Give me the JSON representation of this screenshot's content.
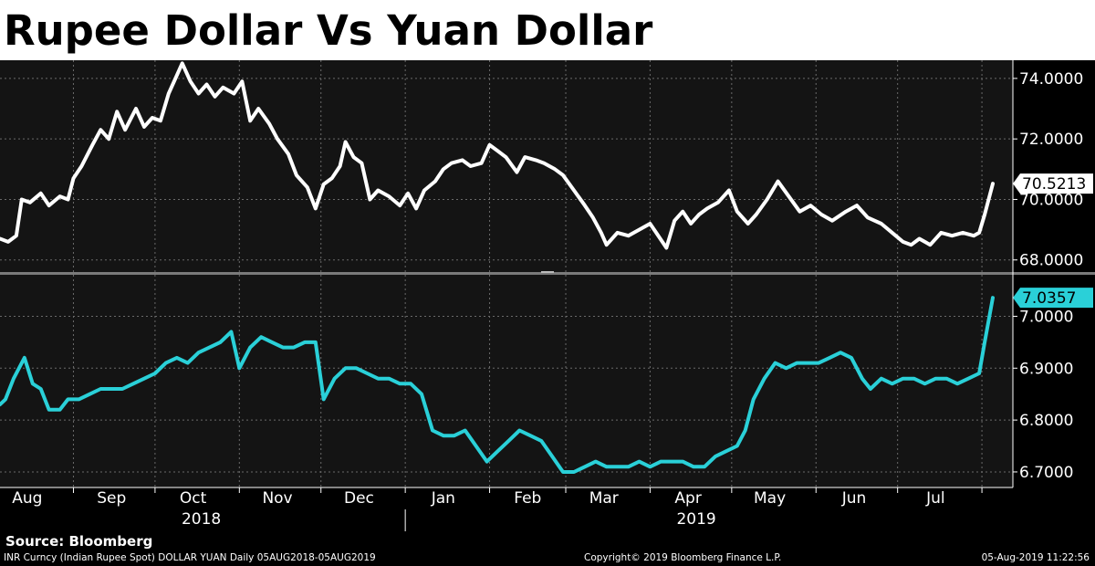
{
  "title": "Rupee Dollar Vs Yuan Dollar",
  "source": "Source: Bloomberg",
  "footer": {
    "left": "INR Curncy (Indian Rupee Spot) DOLLAR YUAN  Daily 05AUG2018-05AUG2019",
    "middle": "Copyright© 2019 Bloomberg Finance L.P.",
    "right": "05-Aug-2019 11:22:56"
  },
  "colors": {
    "background": "#141414",
    "inr_line": "#ffffff",
    "cny_line": "#2ad0d8",
    "grid": "#6a6a6a"
  },
  "chart_data": {
    "type": "line",
    "x_axis": {
      "months": [
        "Aug",
        "Sep",
        "Oct",
        "Nov",
        "Dec",
        "Jan",
        "Feb",
        "Mar",
        "Apr",
        "May",
        "Jun",
        "Jul"
      ],
      "years": [
        "2018",
        "2019"
      ],
      "range": [
        "2018-08-05",
        "2019-08-05"
      ]
    },
    "panels": [
      {
        "series": "INR",
        "color": "#ffffff",
        "ylim": [
          67.6,
          74.6
        ],
        "yticks": [
          "74.0000",
          "72.0000",
          "70.0000",
          "68.0000"
        ],
        "last_value": "70.5213",
        "points": [
          [
            "2018-08-05",
            68.7
          ],
          [
            "2018-08-08",
            68.6
          ],
          [
            "2018-08-11",
            68.8
          ],
          [
            "2018-08-13",
            70.0
          ],
          [
            "2018-08-16",
            69.9
          ],
          [
            "2018-08-20",
            70.2
          ],
          [
            "2018-08-23",
            69.8
          ],
          [
            "2018-08-27",
            70.1
          ],
          [
            "2018-08-30",
            70.0
          ],
          [
            "2018-09-01",
            70.7
          ],
          [
            "2018-09-04",
            71.1
          ],
          [
            "2018-09-08",
            71.8
          ],
          [
            "2018-09-11",
            72.3
          ],
          [
            "2018-09-14",
            72.0
          ],
          [
            "2018-09-17",
            72.9
          ],
          [
            "2018-09-20",
            72.3
          ],
          [
            "2018-09-24",
            73.0
          ],
          [
            "2018-09-27",
            72.4
          ],
          [
            "2018-09-30",
            72.7
          ],
          [
            "2018-10-03",
            72.6
          ],
          [
            "2018-10-06",
            73.5
          ],
          [
            "2018-10-09",
            74.1
          ],
          [
            "2018-10-11",
            74.5
          ],
          [
            "2018-10-14",
            73.9
          ],
          [
            "2018-10-17",
            73.5
          ],
          [
            "2018-10-20",
            73.8
          ],
          [
            "2018-10-23",
            73.4
          ],
          [
            "2018-10-26",
            73.7
          ],
          [
            "2018-10-30",
            73.5
          ],
          [
            "2018-11-02",
            73.9
          ],
          [
            "2018-11-05",
            72.6
          ],
          [
            "2018-11-08",
            73.0
          ],
          [
            "2018-11-12",
            72.5
          ],
          [
            "2018-11-15",
            72.0
          ],
          [
            "2018-11-19",
            71.5
          ],
          [
            "2018-11-22",
            70.8
          ],
          [
            "2018-11-26",
            70.4
          ],
          [
            "2018-11-29",
            69.7
          ],
          [
            "2018-12-02",
            70.5
          ],
          [
            "2018-12-05",
            70.7
          ],
          [
            "2018-12-08",
            71.1
          ],
          [
            "2018-12-10",
            71.9
          ],
          [
            "2018-12-13",
            71.4
          ],
          [
            "2018-12-16",
            71.2
          ],
          [
            "2018-12-19",
            70.0
          ],
          [
            "2018-12-22",
            70.3
          ],
          [
            "2018-12-26",
            70.1
          ],
          [
            "2018-12-30",
            69.8
          ],
          [
            "2019-01-02",
            70.2
          ],
          [
            "2019-01-05",
            69.7
          ],
          [
            "2019-01-08",
            70.3
          ],
          [
            "2019-01-12",
            70.6
          ],
          [
            "2019-01-15",
            71.0
          ],
          [
            "2019-01-18",
            71.2
          ],
          [
            "2019-01-22",
            71.3
          ],
          [
            "2019-01-25",
            71.1
          ],
          [
            "2019-01-29",
            71.2
          ],
          [
            "2019-02-01",
            71.8
          ],
          [
            "2019-02-04",
            71.6
          ],
          [
            "2019-02-07",
            71.4
          ],
          [
            "2019-02-11",
            70.9
          ],
          [
            "2019-02-14",
            71.4
          ],
          [
            "2019-02-18",
            71.3
          ],
          [
            "2019-02-21",
            71.2
          ],
          [
            "2019-02-25",
            71.0
          ],
          [
            "2019-02-28",
            70.8
          ],
          [
            "2019-03-04",
            70.3
          ],
          [
            "2019-03-08",
            69.8
          ],
          [
            "2019-03-11",
            69.4
          ],
          [
            "2019-03-14",
            68.9
          ],
          [
            "2019-03-16",
            68.5
          ],
          [
            "2019-03-20",
            68.9
          ],
          [
            "2019-03-24",
            68.8
          ],
          [
            "2019-03-28",
            69.0
          ],
          [
            "2019-04-01",
            69.2
          ],
          [
            "2019-04-04",
            68.8
          ],
          [
            "2019-04-07",
            68.4
          ],
          [
            "2019-04-10",
            69.3
          ],
          [
            "2019-04-13",
            69.6
          ],
          [
            "2019-04-16",
            69.2
          ],
          [
            "2019-04-19",
            69.5
          ],
          [
            "2019-04-22",
            69.7
          ],
          [
            "2019-04-26",
            69.9
          ],
          [
            "2019-04-30",
            70.3
          ],
          [
            "2019-05-03",
            69.6
          ],
          [
            "2019-05-07",
            69.2
          ],
          [
            "2019-05-10",
            69.5
          ],
          [
            "2019-05-14",
            70.0
          ],
          [
            "2019-05-18",
            70.6
          ],
          [
            "2019-05-22",
            70.1
          ],
          [
            "2019-05-26",
            69.6
          ],
          [
            "2019-05-30",
            69.8
          ],
          [
            "2019-06-03",
            69.5
          ],
          [
            "2019-06-07",
            69.3
          ],
          [
            "2019-06-12",
            69.6
          ],
          [
            "2019-06-16",
            69.8
          ],
          [
            "2019-06-20",
            69.4
          ],
          [
            "2019-06-25",
            69.2
          ],
          [
            "2019-06-29",
            68.9
          ],
          [
            "2019-07-03",
            68.6
          ],
          [
            "2019-07-06",
            68.5
          ],
          [
            "2019-07-09",
            68.7
          ],
          [
            "2019-07-13",
            68.5
          ],
          [
            "2019-07-17",
            68.9
          ],
          [
            "2019-07-21",
            68.8
          ],
          [
            "2019-07-25",
            68.9
          ],
          [
            "2019-07-29",
            68.8
          ],
          [
            "2019-07-31",
            68.9
          ],
          [
            "2019-08-02",
            69.5
          ],
          [
            "2019-08-05",
            70.5213
          ]
        ]
      },
      {
        "series": "CNY",
        "color": "#2ad0d8",
        "ylim": [
          6.67,
          7.08
        ],
        "yticks": [
          "7.0000",
          "6.9000",
          "6.8000",
          "6.7000"
        ],
        "last_value": "7.0357",
        "points": [
          [
            "2018-08-05",
            6.83
          ],
          [
            "2018-08-07",
            6.84
          ],
          [
            "2018-08-10",
            6.88
          ],
          [
            "2018-08-14",
            6.92
          ],
          [
            "2018-08-17",
            6.87
          ],
          [
            "2018-08-20",
            6.86
          ],
          [
            "2018-08-23",
            6.82
          ],
          [
            "2018-08-27",
            6.82
          ],
          [
            "2018-08-30",
            6.84
          ],
          [
            "2018-09-03",
            6.84
          ],
          [
            "2018-09-07",
            6.85
          ],
          [
            "2018-09-11",
            6.86
          ],
          [
            "2018-09-15",
            6.86
          ],
          [
            "2018-09-19",
            6.86
          ],
          [
            "2018-09-23",
            6.87
          ],
          [
            "2018-09-27",
            6.88
          ],
          [
            "2018-10-01",
            6.89
          ],
          [
            "2018-10-05",
            6.91
          ],
          [
            "2018-10-09",
            6.92
          ],
          [
            "2018-10-13",
            6.91
          ],
          [
            "2018-10-17",
            6.93
          ],
          [
            "2018-10-21",
            6.94
          ],
          [
            "2018-10-25",
            6.95
          ],
          [
            "2018-10-29",
            6.97
          ],
          [
            "2018-11-01",
            6.9
          ],
          [
            "2018-11-05",
            6.94
          ],
          [
            "2018-11-09",
            6.96
          ],
          [
            "2018-11-13",
            6.95
          ],
          [
            "2018-11-17",
            6.94
          ],
          [
            "2018-11-21",
            6.94
          ],
          [
            "2018-11-25",
            6.95
          ],
          [
            "2018-11-29",
            6.95
          ],
          [
            "2018-12-02",
            6.84
          ],
          [
            "2018-12-06",
            6.88
          ],
          [
            "2018-12-10",
            6.9
          ],
          [
            "2018-12-14",
            6.9
          ],
          [
            "2018-12-18",
            6.89
          ],
          [
            "2018-12-22",
            6.88
          ],
          [
            "2018-12-26",
            6.88
          ],
          [
            "2018-12-30",
            6.87
          ],
          [
            "2019-01-03",
            6.87
          ],
          [
            "2019-01-07",
            6.85
          ],
          [
            "2019-01-11",
            6.78
          ],
          [
            "2019-01-15",
            6.77
          ],
          [
            "2019-01-19",
            6.77
          ],
          [
            "2019-01-23",
            6.78
          ],
          [
            "2019-01-27",
            6.75
          ],
          [
            "2019-01-31",
            6.72
          ],
          [
            "2019-02-04",
            6.74
          ],
          [
            "2019-02-08",
            6.76
          ],
          [
            "2019-02-12",
            6.78
          ],
          [
            "2019-02-16",
            6.77
          ],
          [
            "2019-02-20",
            6.76
          ],
          [
            "2019-02-24",
            6.73
          ],
          [
            "2019-02-28",
            6.7
          ],
          [
            "2019-03-04",
            6.7
          ],
          [
            "2019-03-08",
            6.71
          ],
          [
            "2019-03-12",
            6.72
          ],
          [
            "2019-03-16",
            6.71
          ],
          [
            "2019-03-20",
            6.71
          ],
          [
            "2019-03-24",
            6.71
          ],
          [
            "2019-03-28",
            6.72
          ],
          [
            "2019-04-01",
            6.71
          ],
          [
            "2019-04-05",
            6.72
          ],
          [
            "2019-04-09",
            6.72
          ],
          [
            "2019-04-13",
            6.72
          ],
          [
            "2019-04-17",
            6.71
          ],
          [
            "2019-04-21",
            6.71
          ],
          [
            "2019-04-25",
            6.73
          ],
          [
            "2019-04-29",
            6.74
          ],
          [
            "2019-05-03",
            6.75
          ],
          [
            "2019-05-06",
            6.78
          ],
          [
            "2019-05-09",
            6.84
          ],
          [
            "2019-05-13",
            6.88
          ],
          [
            "2019-05-17",
            6.91
          ],
          [
            "2019-05-21",
            6.9
          ],
          [
            "2019-05-25",
            6.91
          ],
          [
            "2019-05-29",
            6.91
          ],
          [
            "2019-06-02",
            6.91
          ],
          [
            "2019-06-06",
            6.92
          ],
          [
            "2019-06-10",
            6.93
          ],
          [
            "2019-06-14",
            6.92
          ],
          [
            "2019-06-18",
            6.88
          ],
          [
            "2019-06-21",
            6.86
          ],
          [
            "2019-06-25",
            6.88
          ],
          [
            "2019-06-29",
            6.87
          ],
          [
            "2019-07-03",
            6.88
          ],
          [
            "2019-07-07",
            6.88
          ],
          [
            "2019-07-11",
            6.87
          ],
          [
            "2019-07-15",
            6.88
          ],
          [
            "2019-07-19",
            6.88
          ],
          [
            "2019-07-23",
            6.87
          ],
          [
            "2019-07-27",
            6.88
          ],
          [
            "2019-07-31",
            6.89
          ],
          [
            "2019-08-02",
            6.95
          ],
          [
            "2019-08-05",
            7.0357
          ]
        ]
      }
    ]
  }
}
